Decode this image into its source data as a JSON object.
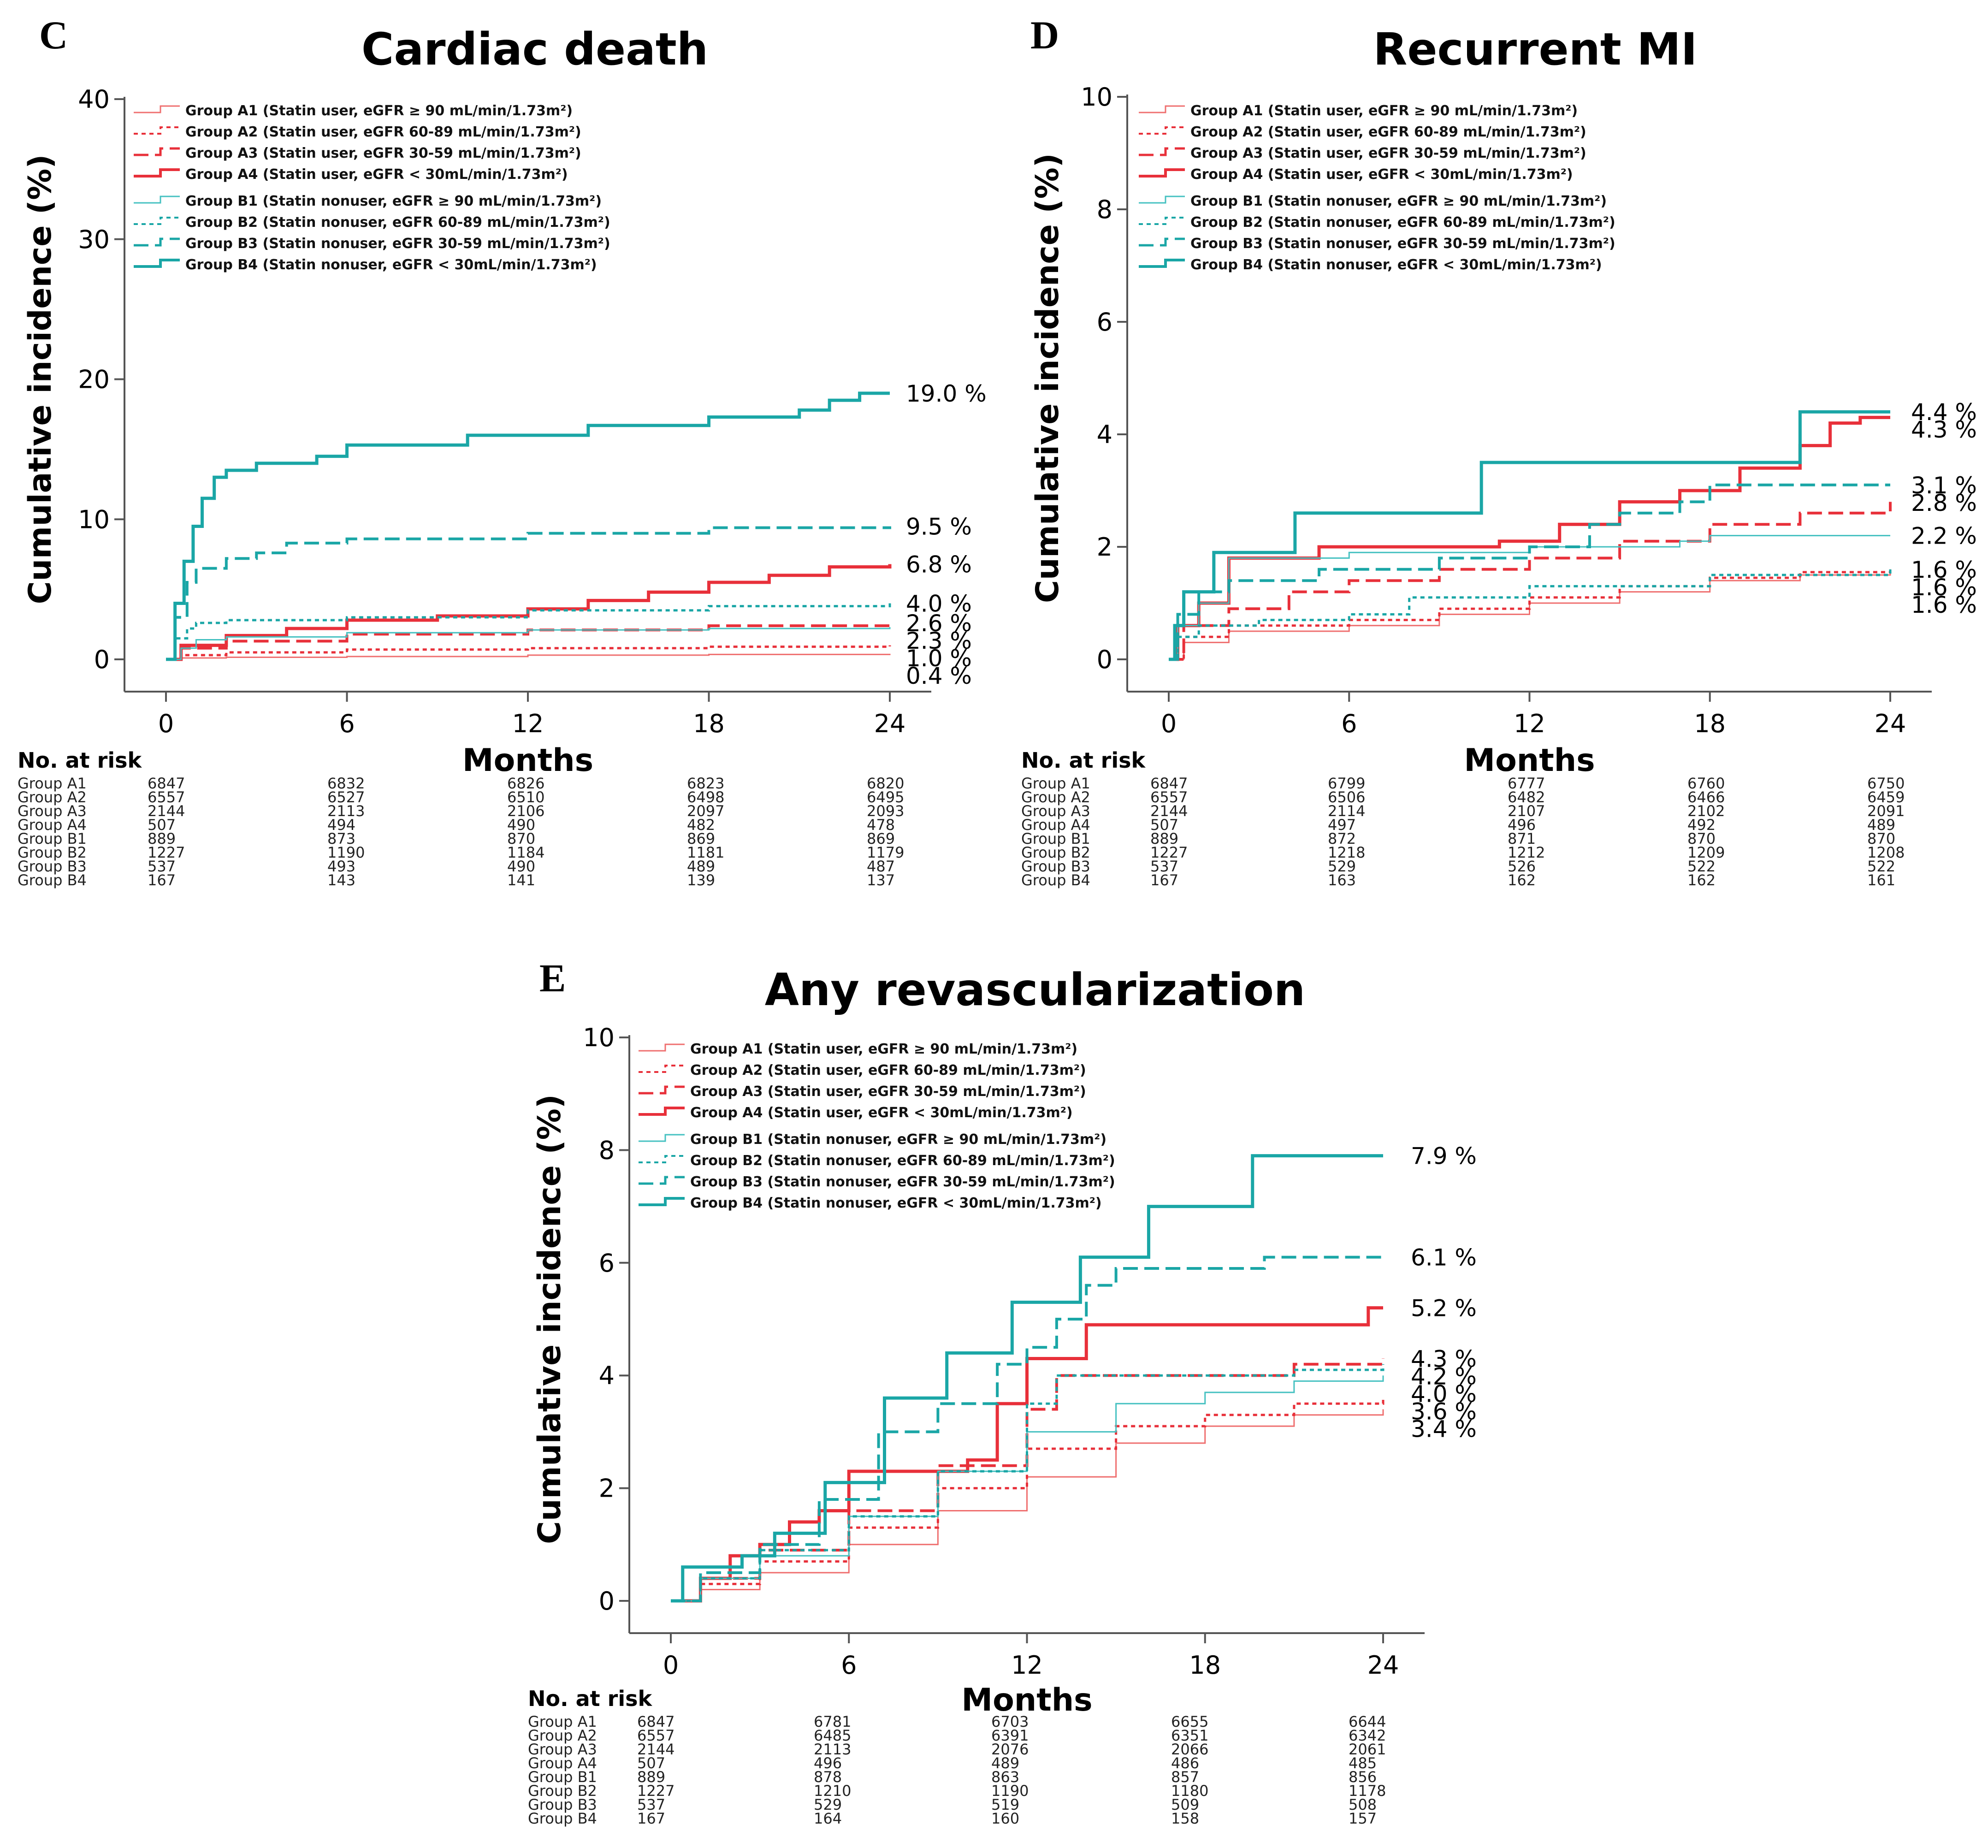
{
  "colors": {
    "red": "#e8303a",
    "red_light": "#ef6f6f",
    "teal": "#1aa6a6",
    "teal_light": "#45c1c1",
    "axis": "#555555"
  },
  "risk_table": {
    "title": "No. at risk",
    "groups": [
      "Group A1",
      "Group A2",
      "Group A3",
      "Group A4",
      "Group B1",
      "Group B2",
      "Group B3",
      "Group B4"
    ]
  },
  "legend": [
    {
      "label": "Group A1 (Statin user, eGFR ≥ 90 mL/min/1.73m²)",
      "color": "#ef6f6f",
      "dash": "",
      "width": 3
    },
    {
      "label": "Group A2 (Statin user, eGFR 60-89 mL/min/1.73m²)",
      "color": "#e8303a",
      "dash": "9 8",
      "width": 5
    },
    {
      "label": "Group A3 (Statin user, eGFR 30-59 mL/min/1.73m²)",
      "color": "#e8303a",
      "dash": "32 14",
      "width": 6
    },
    {
      "label": "Group A4 (Statin user, eGFR < 30mL/min/1.73m²)",
      "color": "#e8303a",
      "dash": "",
      "width": 7
    },
    {
      "label": "Group B1 (Statin nonuser, eGFR ≥ 90 mL/min/1.73m²)",
      "color": "#45c1c1",
      "dash": "",
      "width": 3
    },
    {
      "label": "Group B2 (Statin nonuser, eGFR 60-89 mL/min/1.73m²)",
      "color": "#1aa6a6",
      "dash": "9 8",
      "width": 5
    },
    {
      "label": "Group B3 (Statin nonuser, eGFR 30-59 mL/min/1.73m²)",
      "color": "#1aa6a6",
      "dash": "32 14",
      "width": 6
    },
    {
      "label": "Group B4 (Statin nonuser, eGFR < 30mL/min/1.73m²)",
      "color": "#1aa6a6",
      "dash": "",
      "width": 7
    }
  ],
  "chart_data": [
    {
      "panel": "C",
      "type": "line",
      "title": "Cardiac death",
      "xlabel": "Months",
      "ylabel": "Cumulative incidence (%)",
      "xlim": [
        0,
        24
      ],
      "ylim": [
        0,
        40
      ],
      "xticks": [
        0,
        6,
        12,
        18,
        24
      ],
      "yticks": [
        0,
        10,
        20,
        30,
        40
      ],
      "series": [
        {
          "name": "Group A1",
          "x": [
            0,
            0.5,
            2,
            6,
            12,
            18,
            24
          ],
          "y": [
            0,
            0.1,
            0.15,
            0.2,
            0.3,
            0.35,
            0.4
          ],
          "end_label": "0.4 %"
        },
        {
          "name": "Group A2",
          "x": [
            0,
            0.5,
            2,
            6,
            12,
            18,
            24
          ],
          "y": [
            0,
            0.3,
            0.5,
            0.7,
            0.8,
            0.9,
            1.0
          ],
          "end_label": "1.0 %"
        },
        {
          "name": "Group A3",
          "x": [
            0,
            0.5,
            2,
            6,
            12,
            18,
            24
          ],
          "y": [
            0,
            0.8,
            1.3,
            1.8,
            2.1,
            2.4,
            2.6
          ],
          "end_label": "2.6 %"
        },
        {
          "name": "Group A4",
          "x": [
            0,
            0.5,
            2,
            4,
            6,
            9,
            12,
            14,
            16,
            18,
            20,
            22,
            24
          ],
          "y": [
            0,
            1.0,
            1.7,
            2.2,
            2.8,
            3.1,
            3.6,
            4.2,
            4.8,
            5.5,
            6.0,
            6.6,
            6.8
          ],
          "end_label": "6.8 %"
        },
        {
          "name": "Group B1",
          "x": [
            0,
            0.5,
            1,
            2,
            6,
            12,
            18,
            24
          ],
          "y": [
            0,
            0.8,
            1.4,
            1.6,
            1.9,
            2.1,
            2.2,
            2.3
          ],
          "end_label": "2.3 %"
        },
        {
          "name": "Group B2",
          "x": [
            0,
            0.3,
            0.7,
            1,
            2,
            6,
            12,
            18,
            24
          ],
          "y": [
            0,
            1.5,
            2.2,
            2.6,
            2.8,
            3.0,
            3.5,
            3.8,
            4.0
          ],
          "end_label": "4.0 %"
        },
        {
          "name": "Group B3",
          "x": [
            0,
            0.3,
            0.7,
            1,
            2,
            3,
            4,
            6,
            12,
            18,
            24
          ],
          "y": [
            0,
            3.0,
            5.5,
            6.5,
            7.2,
            7.6,
            8.3,
            8.6,
            9.0,
            9.4,
            9.5
          ],
          "end_label": "9.5 %"
        },
        {
          "name": "Group B4",
          "x": [
            0,
            0.3,
            0.6,
            0.9,
            1.2,
            1.6,
            2,
            3,
            5,
            6,
            10,
            14,
            18,
            21,
            22,
            23,
            24
          ],
          "y": [
            0,
            4.0,
            7.0,
            9.5,
            11.5,
            13.0,
            13.5,
            14.0,
            14.5,
            15.3,
            16.0,
            16.7,
            17.3,
            17.8,
            18.5,
            19.0,
            19.0
          ],
          "end_label": "19.0 %"
        }
      ],
      "risk_columns": [
        0,
        6,
        12,
        18,
        24
      ],
      "risk_rows": [
        [
          "6847",
          "6832",
          "6826",
          "6823",
          "6820"
        ],
        [
          "6557",
          "6527",
          "6510",
          "6498",
          "6495"
        ],
        [
          "2144",
          "2113",
          "2106",
          "2097",
          "2093"
        ],
        [
          "507",
          "494",
          "490",
          "482",
          "478"
        ],
        [
          "889",
          "873",
          "870",
          "869",
          "869"
        ],
        [
          "1227",
          "1190",
          "1184",
          "1181",
          "1179"
        ],
        [
          "537",
          "493",
          "490",
          "489",
          "487"
        ],
        [
          "167",
          "143",
          "141",
          "139",
          "137"
        ]
      ]
    },
    {
      "panel": "D",
      "type": "line",
      "title": "Recurrent MI",
      "xlabel": "Months",
      "ylabel": "Cumulative incidence (%)",
      "xlim": [
        0,
        24
      ],
      "ylim": [
        0,
        10
      ],
      "xticks": [
        0,
        6,
        12,
        18,
        24
      ],
      "yticks": [
        0,
        2,
        4,
        6,
        8,
        10
      ],
      "series": [
        {
          "name": "Group A1",
          "x": [
            0,
            0.5,
            2,
            6,
            9,
            12,
            15,
            18,
            21,
            24
          ],
          "y": [
            0,
            0.3,
            0.5,
            0.6,
            0.8,
            1.0,
            1.2,
            1.4,
            1.5,
            1.6
          ],
          "end_label": "1.6 %"
        },
        {
          "name": "Group A2",
          "x": [
            0,
            0.5,
            2,
            6,
            9,
            12,
            15,
            18,
            21,
            24
          ],
          "y": [
            0,
            0.4,
            0.6,
            0.7,
            0.9,
            1.1,
            1.3,
            1.45,
            1.55,
            1.6
          ],
          "end_label": "1.6 %"
        },
        {
          "name": "Group A3",
          "x": [
            0,
            0.5,
            2,
            4,
            6,
            9,
            12,
            15,
            18,
            21,
            24
          ],
          "y": [
            0,
            0.6,
            0.9,
            1.2,
            1.4,
            1.6,
            1.8,
            2.1,
            2.4,
            2.6,
            2.8
          ],
          "end_label": "2.8 %"
        },
        {
          "name": "Group A4",
          "x": [
            0,
            0.3,
            1,
            2,
            5,
            8,
            11,
            13,
            15,
            17,
            19,
            21,
            22,
            23,
            24
          ],
          "y": [
            0,
            0.6,
            1.0,
            1.8,
            2.0,
            2.0,
            2.1,
            2.4,
            2.8,
            3.0,
            3.4,
            3.8,
            4.2,
            4.3,
            4.3
          ],
          "end_label": "4.3 %"
        },
        {
          "name": "Group B1",
          "x": [
            0,
            0.3,
            1,
            2,
            6,
            12,
            17,
            18,
            24
          ],
          "y": [
            0,
            0.6,
            1.0,
            1.8,
            1.9,
            2.0,
            2.1,
            2.2,
            2.2
          ],
          "end_label": "2.2 %"
        },
        {
          "name": "Group B2",
          "x": [
            0,
            0.3,
            1,
            3,
            6,
            8,
            12,
            18,
            24
          ],
          "y": [
            0,
            0.4,
            0.6,
            0.7,
            0.8,
            1.1,
            1.3,
            1.5,
            1.6
          ],
          "end_label": "1.6 %"
        },
        {
          "name": "Group B3",
          "x": [
            0,
            0.3,
            1,
            2,
            5,
            9,
            12,
            14,
            15,
            17,
            18,
            24
          ],
          "y": [
            0,
            0.8,
            1.2,
            1.4,
            1.6,
            1.8,
            2.0,
            2.4,
            2.6,
            2.8,
            3.1,
            3.1
          ],
          "end_label": "3.1 %"
        },
        {
          "name": "Group B4",
          "x": [
            0,
            0.2,
            0.5,
            1.5,
            4.2,
            10.4,
            21,
            24
          ],
          "y": [
            0,
            0.6,
            1.2,
            1.9,
            2.6,
            3.5,
            4.4,
            4.4
          ],
          "end_label": "4.4 %"
        }
      ],
      "risk_columns": [
        0,
        6,
        12,
        18,
        24
      ],
      "risk_rows": [
        [
          "6847",
          "6799",
          "6777",
          "6760",
          "6750"
        ],
        [
          "6557",
          "6506",
          "6482",
          "6466",
          "6459"
        ],
        [
          "2144",
          "2114",
          "2107",
          "2102",
          "2091"
        ],
        [
          "507",
          "497",
          "496",
          "492",
          "489"
        ],
        [
          "889",
          "872",
          "871",
          "870",
          "870"
        ],
        [
          "1227",
          "1218",
          "1212",
          "1209",
          "1208"
        ],
        [
          "537",
          "529",
          "526",
          "522",
          "522"
        ],
        [
          "167",
          "163",
          "162",
          "162",
          "161"
        ]
      ]
    },
    {
      "panel": "E",
      "type": "line",
      "title": "Any revascularization",
      "xlabel": "Months",
      "ylabel": "Cumulative incidence (%)",
      "xlim": [
        0,
        24
      ],
      "ylim": [
        0,
        10
      ],
      "xticks": [
        0,
        6,
        12,
        18,
        24
      ],
      "yticks": [
        0,
        2,
        4,
        6,
        8,
        10
      ],
      "series": [
        {
          "name": "Group A1",
          "x": [
            0,
            1,
            3,
            6,
            9,
            12,
            15,
            18,
            21,
            24
          ],
          "y": [
            0,
            0.2,
            0.5,
            1.0,
            1.6,
            2.2,
            2.8,
            3.1,
            3.3,
            3.4
          ],
          "end_label": "3.4 %"
        },
        {
          "name": "Group A2",
          "x": [
            0,
            1,
            3,
            6,
            9,
            12,
            15,
            18,
            21,
            24
          ],
          "y": [
            0,
            0.3,
            0.7,
            1.3,
            2.0,
            2.7,
            3.1,
            3.3,
            3.5,
            3.6
          ],
          "end_label": "3.6 %"
        },
        {
          "name": "Group A3",
          "x": [
            0,
            1,
            3,
            6,
            9,
            12,
            13,
            18,
            21,
            24
          ],
          "y": [
            0,
            0.4,
            0.9,
            1.6,
            2.4,
            3.4,
            4.0,
            4.0,
            4.2,
            4.3
          ],
          "end_label": "4.3 %"
        },
        {
          "name": "Group A4",
          "x": [
            0,
            1,
            2,
            3,
            4,
            5,
            6,
            8,
            10,
            11,
            12,
            14,
            16,
            18,
            20,
            22,
            23.5,
            24
          ],
          "y": [
            0,
            0.4,
            0.8,
            1.0,
            1.4,
            1.6,
            2.3,
            2.3,
            2.5,
            3.5,
            4.3,
            4.9,
            4.9,
            4.9,
            4.9,
            4.9,
            5.2,
            5.2
          ],
          "end_label": "5.2 %"
        },
        {
          "name": "Group B1",
          "x": [
            0,
            1,
            3,
            6,
            9,
            12,
            15,
            18,
            21,
            24
          ],
          "y": [
            0,
            0.4,
            0.8,
            1.5,
            2.3,
            3.0,
            3.5,
            3.7,
            3.9,
            4.0
          ],
          "end_label": "4.0 %"
        },
        {
          "name": "Group B2",
          "x": [
            0,
            1,
            3,
            6,
            9,
            12,
            13,
            18,
            21,
            24
          ],
          "y": [
            0,
            0.4,
            0.9,
            1.5,
            2.3,
            3.5,
            4.0,
            4.0,
            4.1,
            4.2
          ],
          "end_label": "4.2 %"
        },
        {
          "name": "Group B3",
          "x": [
            0,
            1,
            3,
            5,
            7,
            9,
            11,
            12,
            13,
            14,
            15,
            16,
            20,
            24
          ],
          "y": [
            0,
            0.5,
            1.0,
            1.8,
            3.0,
            3.5,
            4.2,
            4.5,
            5.0,
            5.6,
            5.9,
            5.9,
            6.1,
            6.1
          ],
          "end_label": "6.1 %"
        },
        {
          "name": "Group B4",
          "x": [
            0,
            0.4,
            1.2,
            2.4,
            3.5,
            5.2,
            7.2,
            9.3,
            11.5,
            13.8,
            16.1,
            19.6,
            24
          ],
          "y": [
            0,
            0.6,
            0.6,
            0.8,
            1.2,
            2.1,
            3.6,
            4.4,
            5.3,
            6.1,
            7.0,
            7.9,
            7.9
          ],
          "end_label": "7.9 %"
        }
      ],
      "risk_columns": [
        0,
        6,
        12,
        18,
        24
      ],
      "risk_rows": [
        [
          "6847",
          "6781",
          "6703",
          "6655",
          "6644"
        ],
        [
          "6557",
          "6485",
          "6391",
          "6351",
          "6342"
        ],
        [
          "2144",
          "2113",
          "2076",
          "2066",
          "2061"
        ],
        [
          "507",
          "496",
          "489",
          "486",
          "485"
        ],
        [
          "889",
          "878",
          "863",
          "857",
          "856"
        ],
        [
          "1227",
          "1210",
          "1190",
          "1180",
          "1178"
        ],
        [
          "537",
          "529",
          "519",
          "509",
          "508"
        ],
        [
          "167",
          "164",
          "160",
          "158",
          "157"
        ]
      ]
    }
  ]
}
